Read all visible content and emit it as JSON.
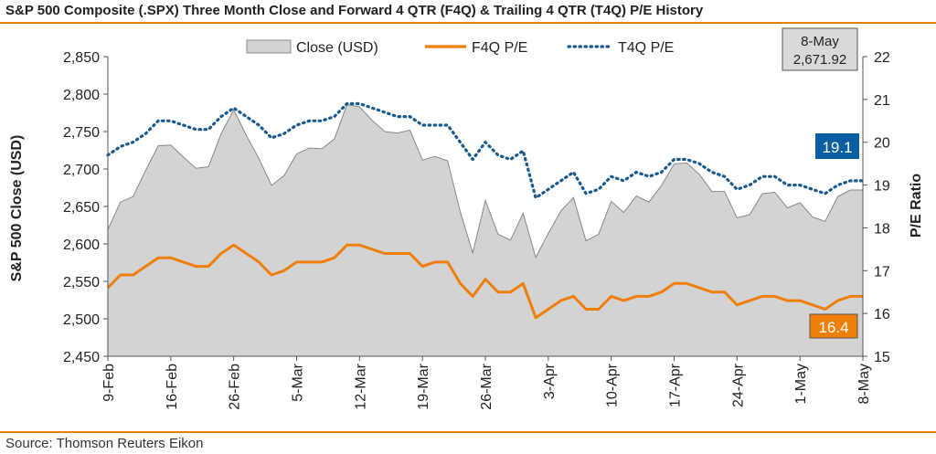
{
  "header": {
    "title": "S&P 500 Composite (.SPX) Three Month Close and Forward 4 QTR (F4Q) & Trailing 4 QTR (T4Q) P/E History"
  },
  "footer": {
    "source": "Source: Thomson Reuters Eikon"
  },
  "colors": {
    "close_fill": "#d3d3d3",
    "close_stroke": "#888888",
    "f4q": "#f07f09",
    "t4q": "#1a5a8c",
    "rule": "#f07f09",
    "badge_f4q": "#f07f09",
    "badge_t4q": "#0a5fa3",
    "badge_last": "#d9d9d9"
  },
  "chart_data": {
    "type": "area",
    "title": "S&P 500 Composite (.SPX) Three Month Close and Forward 4 QTR (F4Q) & Trailing 4 QTR (T4Q) P/E History",
    "ylabel": "S&P 500 Close (USD)",
    "y2label": "P/E Ratio",
    "ylim": [
      2450,
      2850
    ],
    "y_ticks": [
      "2,450",
      "2,500",
      "2,550",
      "2,600",
      "2,650",
      "2,700",
      "2,750",
      "2,800",
      "2,850"
    ],
    "y2lim": [
      15,
      22
    ],
    "y2_ticks": [
      "15",
      "16",
      "17",
      "18",
      "19",
      "20",
      "21",
      "22"
    ],
    "x_ticks": [
      "9-Feb",
      "16-Feb",
      "26-Feb",
      "5-Mar",
      "12-Mar",
      "19-Mar",
      "26-Mar",
      "3-Apr",
      "10-Apr",
      "17-Apr",
      "24-Apr",
      "1-May",
      "8-May"
    ],
    "x_tick_index": [
      0,
      5,
      10,
      15,
      20,
      25,
      30,
      35,
      40,
      45,
      50,
      55,
      60
    ],
    "legend_position": "top-center",
    "grid": false,
    "x": [
      "9-Feb",
      "12-Feb",
      "13-Feb",
      "14-Feb",
      "15-Feb",
      "16-Feb",
      "20-Feb",
      "21-Feb",
      "22-Feb",
      "23-Feb",
      "26-Feb",
      "27-Feb",
      "28-Feb",
      "1-Mar",
      "2-Mar",
      "5-Mar",
      "6-Mar",
      "7-Mar",
      "8-Mar",
      "9-Mar",
      "12-Mar",
      "13-Mar",
      "14-Mar",
      "15-Mar",
      "16-Mar",
      "19-Mar",
      "20-Mar",
      "21-Mar",
      "22-Mar",
      "23-Mar",
      "26-Mar",
      "27-Mar",
      "28-Mar",
      "29-Mar",
      "2-Apr",
      "3-Apr",
      "4-Apr",
      "5-Apr",
      "6-Apr",
      "9-Apr",
      "10-Apr",
      "11-Apr",
      "12-Apr",
      "13-Apr",
      "16-Apr",
      "17-Apr",
      "18-Apr",
      "19-Apr",
      "20-Apr",
      "23-Apr",
      "24-Apr",
      "25-Apr",
      "26-Apr",
      "27-Apr",
      "30-Apr",
      "1-May",
      "2-May",
      "3-May",
      "4-May",
      "7-May",
      "8-May"
    ],
    "series": [
      {
        "name": "Close (USD)",
        "kind": "area",
        "axis": "left",
        "values": [
          2619,
          2656,
          2663,
          2698,
          2731,
          2732,
          2716,
          2701,
          2703,
          2747,
          2779,
          2745,
          2714,
          2678,
          2691,
          2720,
          2728,
          2727,
          2740,
          2786,
          2783,
          2765,
          2750,
          2748,
          2752,
          2712,
          2717,
          2711,
          2643,
          2588,
          2658,
          2613,
          2605,
          2641,
          2582,
          2614,
          2644,
          2662,
          2604,
          2613,
          2657,
          2642,
          2664,
          2656,
          2678,
          2707,
          2708,
          2693,
          2670,
          2670,
          2635,
          2639,
          2667,
          2669,
          2648,
          2655,
          2636,
          2630,
          2663,
          2672,
          2672
        ]
      },
      {
        "name": "F4Q P/E",
        "kind": "line",
        "axis": "right",
        "values": [
          16.6,
          16.9,
          16.9,
          17.1,
          17.3,
          17.3,
          17.2,
          17.1,
          17.1,
          17.4,
          17.6,
          17.4,
          17.2,
          16.9,
          17.0,
          17.2,
          17.2,
          17.2,
          17.3,
          17.6,
          17.6,
          17.5,
          17.4,
          17.4,
          17.4,
          17.1,
          17.2,
          17.2,
          16.7,
          16.4,
          16.8,
          16.5,
          16.5,
          16.7,
          15.9,
          16.1,
          16.3,
          16.4,
          16.1,
          16.1,
          16.4,
          16.3,
          16.4,
          16.4,
          16.5,
          16.7,
          16.7,
          16.6,
          16.5,
          16.5,
          16.2,
          16.3,
          16.4,
          16.4,
          16.3,
          16.3,
          16.2,
          16.1,
          16.3,
          16.4,
          16.4
        ]
      },
      {
        "name": "T4Q P/E",
        "kind": "dotted-line",
        "axis": "right",
        "values": [
          19.7,
          19.9,
          20.0,
          20.2,
          20.5,
          20.5,
          20.4,
          20.3,
          20.3,
          20.6,
          20.8,
          20.6,
          20.4,
          20.1,
          20.2,
          20.4,
          20.5,
          20.5,
          20.6,
          20.9,
          20.9,
          20.8,
          20.7,
          20.6,
          20.6,
          20.4,
          20.4,
          20.4,
          20.0,
          19.6,
          20.0,
          19.7,
          19.6,
          19.8,
          18.7,
          18.9,
          19.1,
          19.3,
          18.8,
          18.9,
          19.2,
          19.1,
          19.3,
          19.2,
          19.3,
          19.6,
          19.6,
          19.5,
          19.3,
          19.2,
          18.9,
          19.0,
          19.2,
          19.2,
          19.0,
          19.0,
          18.9,
          18.8,
          19.0,
          19.1,
          19.1
        ]
      }
    ],
    "callouts": {
      "last_date": "8-May",
      "last_close": "2,671.92",
      "t4q_last": "19.1",
      "f4q_last": "16.4"
    }
  }
}
